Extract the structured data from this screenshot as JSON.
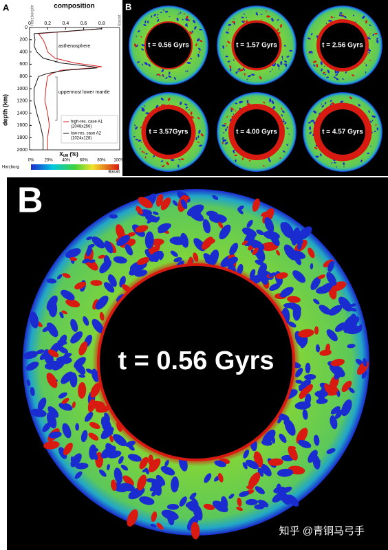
{
  "panel_a": {
    "label": "A",
    "chart_data": {
      "type": "line",
      "title": "composition",
      "y_label": "depth (km)",
      "x_label": {
        "main": "X",
        "sub": "UM",
        "unit": "(%)"
      },
      "left_end_label": "Harzburgite",
      "right_end_label": "Basalt",
      "xlim": [
        0,
        1
      ],
      "xticks": [
        0,
        0.2,
        0.4,
        0.6,
        0.8
      ],
      "ylim": [
        0,
        2000
      ],
      "yticks": [
        0,
        200,
        400,
        600,
        800,
        1000,
        1200,
        1400,
        1600,
        1800,
        2000
      ],
      "y": [
        20,
        100,
        200,
        300,
        400,
        500,
        580,
        640,
        660,
        700,
        750,
        800,
        1000,
        1200,
        1400,
        1600,
        1800,
        2000
      ],
      "series": [
        {
          "name": "high-res. case A1",
          "detail": "(2048x256)",
          "color": "#d62020",
          "values": [
            0.8,
            0.1,
            0.15,
            0.18,
            0.2,
            0.28,
            0.5,
            0.8,
            0.7,
            0.35,
            0.25,
            0.2,
            0.18,
            0.17,
            0.2,
            0.22,
            0.2,
            0.2
          ]
        },
        {
          "name": "low-res. case A2",
          "detail": "(1024x128)",
          "color": "#111111",
          "values": [
            0.8,
            0.05,
            0.06,
            0.05,
            0.08,
            0.15,
            0.35,
            0.7,
            0.75,
            0.4,
            0.2,
            0.1,
            0.05,
            0.05,
            0.08,
            0.12,
            0.15,
            0.15
          ]
        }
      ],
      "annotations": [
        "asthenosphere",
        "uppermost lower mantle"
      ],
      "colorbar": {
        "left_label": "Harzburg",
        "right_label": "Basalt",
        "ticks": [
          {
            "value": 0,
            "label": "0%"
          },
          {
            "value": 20,
            "label": "20%"
          },
          {
            "value": 40,
            "label": "40%"
          },
          {
            "value": 60,
            "label": "60%"
          },
          {
            "value": 80,
            "label": "80%"
          },
          {
            "value": 100,
            "label": "100%"
          }
        ],
        "lim": [
          0,
          100
        ]
      }
    }
  },
  "panel_b_small": {
    "label": "B",
    "frames": [
      "t = 0.56 Gyrs",
      "t = 1.57 Gyrs",
      "t = 2.56 Gyrs",
      "t = 3.57Gyrs",
      "t = 4.00 Gyrs",
      "t = 4.57 Gyrs"
    ]
  },
  "panel_b_large": {
    "label": "B",
    "time": "t = 0.56 Gyrs"
  },
  "watermark": "知乎 @青铜马弓手"
}
